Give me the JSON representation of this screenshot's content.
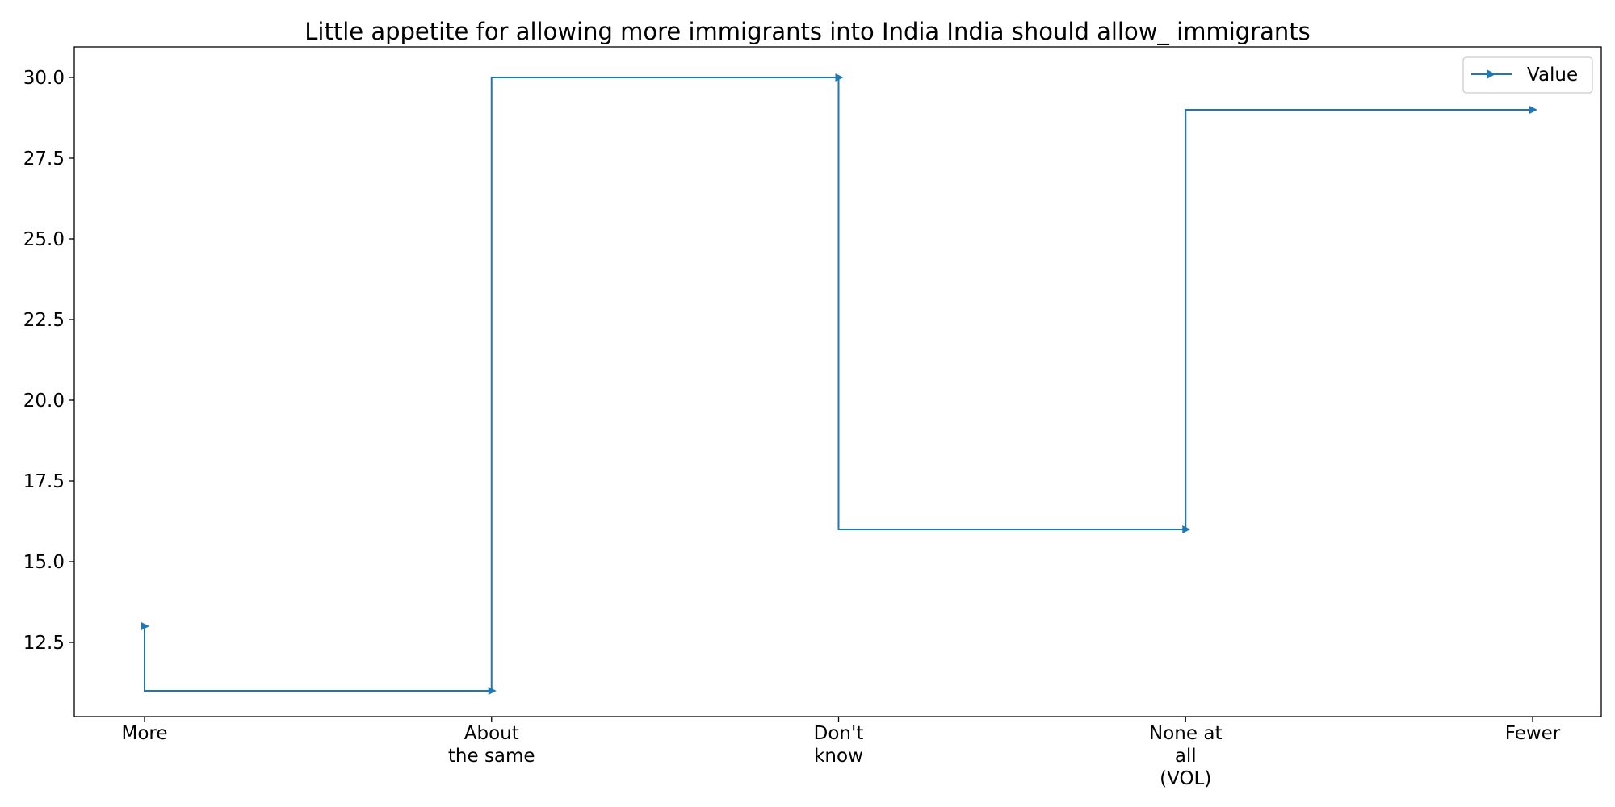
{
  "chart_data": {
    "type": "line",
    "step": "post",
    "title": "Little appetite for allowing more immigrants into India India should allow_ immigrants",
    "xlabel": "",
    "ylabel": "",
    "categories": [
      [
        "More"
      ],
      [
        "About",
        "the same"
      ],
      [
        "Don't",
        "know"
      ],
      [
        "None at",
        "all",
        "(VOL)"
      ],
      [
        "Fewer"
      ]
    ],
    "series": [
      {
        "name": "Value",
        "values": [
          13,
          11,
          30,
          16,
          29
        ],
        "color": "#1f77b4",
        "marker": "triangle-right"
      }
    ],
    "ylim": [
      10.2,
      30.95
    ],
    "yticks": [
      12.5,
      15.0,
      17.5,
      20.0,
      22.5,
      25.0,
      27.5,
      30.0
    ],
    "ytick_labels": [
      "12.5",
      "15.0",
      "17.5",
      "20.0",
      "22.5",
      "25.0",
      "27.5",
      "30.0"
    ],
    "grid": false,
    "legend": "top-right"
  }
}
